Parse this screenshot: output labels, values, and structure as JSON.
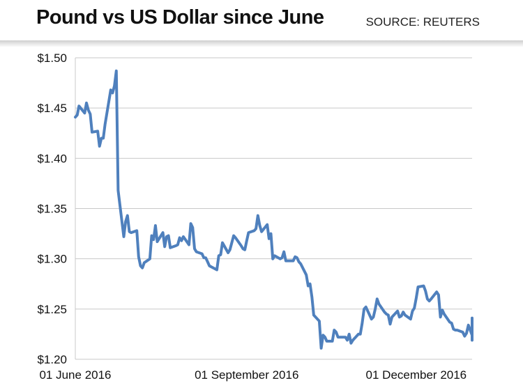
{
  "header": {
    "title": "Pound vs US Dollar since June",
    "source": "SOURCE: REUTERS"
  },
  "colors": {
    "line": "#4f80bd",
    "grid": "#c8c8c8",
    "header_shadow": "#cfcfcf"
  },
  "chart_data": {
    "type": "line",
    "title": "Pound vs US Dollar since June",
    "xlabel": "",
    "ylabel": "",
    "ylim": [
      1.2,
      1.5
    ],
    "xlim": [
      "2016-06-01",
      "2016-12-31"
    ],
    "yticks": [
      1.5,
      1.45,
      1.4,
      1.35,
      1.3,
      1.25,
      1.2
    ],
    "ytick_labels": [
      "$1.50",
      "$1.45",
      "$1.40",
      "$1.35",
      "$1.30",
      "$1.25",
      "$1.20"
    ],
    "xticks": [
      "2016-06-01",
      "2016-09-01",
      "2016-12-01"
    ],
    "xtick_labels": [
      "01 June 2016",
      "01 September 2016",
      "01 December 2016"
    ],
    "grid": true,
    "series": [
      {
        "color": "#4f80bd",
        "points": [
          [
            "2016-06-01",
            1.441
          ],
          [
            "2016-06-02",
            1.443
          ],
          [
            "2016-06-03",
            1.452
          ],
          [
            "2016-06-06",
            1.445
          ],
          [
            "2016-06-07",
            1.455
          ],
          [
            "2016-06-08",
            1.448
          ],
          [
            "2016-06-09",
            1.444
          ],
          [
            "2016-06-10",
            1.426
          ],
          [
            "2016-06-13",
            1.427
          ],
          [
            "2016-06-14",
            1.412
          ],
          [
            "2016-06-15",
            1.42
          ],
          [
            "2016-06-16",
            1.42
          ],
          [
            "2016-06-17",
            1.434
          ],
          [
            "2016-06-20",
            1.468
          ],
          [
            "2016-06-21",
            1.465
          ],
          [
            "2016-06-22",
            1.472
          ],
          [
            "2016-06-23",
            1.487
          ],
          [
            "2016-06-24",
            1.368
          ],
          [
            "2016-06-27",
            1.322
          ],
          [
            "2016-06-28",
            1.337
          ],
          [
            "2016-06-29",
            1.343
          ],
          [
            "2016-06-30",
            1.327
          ],
          [
            "2016-07-01",
            1.326
          ],
          [
            "2016-07-04",
            1.328
          ],
          [
            "2016-07-05",
            1.302
          ],
          [
            "2016-07-06",
            1.293
          ],
          [
            "2016-07-07",
            1.291
          ],
          [
            "2016-07-08",
            1.296
          ],
          [
            "2016-07-11",
            1.3
          ],
          [
            "2016-07-12",
            1.323
          ],
          [
            "2016-07-13",
            1.319
          ],
          [
            "2016-07-14",
            1.333
          ],
          [
            "2016-07-15",
            1.317
          ],
          [
            "2016-07-18",
            1.326
          ],
          [
            "2016-07-19",
            1.312
          ],
          [
            "2016-07-20",
            1.322
          ],
          [
            "2016-07-21",
            1.323
          ],
          [
            "2016-07-22",
            1.311
          ],
          [
            "2016-07-25",
            1.313
          ],
          [
            "2016-07-26",
            1.314
          ],
          [
            "2016-07-27",
            1.321
          ],
          [
            "2016-07-28",
            1.318
          ],
          [
            "2016-07-29",
            1.322
          ],
          [
            "2016-08-01",
            1.314
          ],
          [
            "2016-08-02",
            1.335
          ],
          [
            "2016-08-03",
            1.331
          ],
          [
            "2016-08-04",
            1.31
          ],
          [
            "2016-08-05",
            1.307
          ],
          [
            "2016-08-08",
            1.305
          ],
          [
            "2016-08-09",
            1.301
          ],
          [
            "2016-08-10",
            1.301
          ],
          [
            "2016-08-11",
            1.297
          ],
          [
            "2016-08-12",
            1.293
          ],
          [
            "2016-08-15",
            1.29
          ],
          [
            "2016-08-16",
            1.289
          ],
          [
            "2016-08-17",
            1.303
          ],
          [
            "2016-08-18",
            1.304
          ],
          [
            "2016-08-19",
            1.316
          ],
          [
            "2016-08-22",
            1.306
          ],
          [
            "2016-08-23",
            1.309
          ],
          [
            "2016-08-24",
            1.316
          ],
          [
            "2016-08-25",
            1.323
          ],
          [
            "2016-08-26",
            1.321
          ],
          [
            "2016-08-29",
            1.313
          ],
          [
            "2016-08-30",
            1.31
          ],
          [
            "2016-08-31",
            1.309
          ],
          [
            "2016-09-01",
            1.318
          ],
          [
            "2016-09-02",
            1.326
          ],
          [
            "2016-09-05",
            1.328
          ],
          [
            "2016-09-06",
            1.33
          ],
          [
            "2016-09-07",
            1.343
          ],
          [
            "2016-09-08",
            1.333
          ],
          [
            "2016-09-09",
            1.327
          ],
          [
            "2016-09-12",
            1.334
          ],
          [
            "2016-09-13",
            1.32
          ],
          [
            "2016-09-14",
            1.325
          ],
          [
            "2016-09-15",
            1.3
          ],
          [
            "2016-09-16",
            1.303
          ],
          [
            "2016-09-19",
            1.3
          ],
          [
            "2016-09-20",
            1.301
          ],
          [
            "2016-09-21",
            1.307
          ],
          [
            "2016-09-22",
            1.298
          ],
          [
            "2016-09-23",
            1.298
          ],
          [
            "2016-09-26",
            1.298
          ],
          [
            "2016-09-27",
            1.302
          ],
          [
            "2016-09-28",
            1.301
          ],
          [
            "2016-09-29",
            1.297
          ],
          [
            "2016-09-30",
            1.295
          ],
          [
            "2016-10-03",
            1.284
          ],
          [
            "2016-10-04",
            1.273
          ],
          [
            "2016-10-05",
            1.275
          ],
          [
            "2016-10-06",
            1.262
          ],
          [
            "2016-10-07",
            1.244
          ],
          [
            "2016-10-10",
            1.238
          ],
          [
            "2016-10-11",
            1.211
          ],
          [
            "2016-10-12",
            1.224
          ],
          [
            "2016-10-13",
            1.222
          ],
          [
            "2016-10-14",
            1.218
          ],
          [
            "2016-10-17",
            1.218
          ],
          [
            "2016-10-18",
            1.229
          ],
          [
            "2016-10-19",
            1.227
          ],
          [
            "2016-10-20",
            1.222
          ],
          [
            "2016-10-21",
            1.222
          ],
          [
            "2016-10-24",
            1.222
          ],
          [
            "2016-10-25",
            1.219
          ],
          [
            "2016-10-26",
            1.225
          ],
          [
            "2016-10-27",
            1.216
          ],
          [
            "2016-10-28",
            1.219
          ],
          [
            "2016-10-31",
            1.225
          ],
          [
            "2016-11-01",
            1.225
          ],
          [
            "2016-11-02",
            1.236
          ],
          [
            "2016-11-03",
            1.25
          ],
          [
            "2016-11-04",
            1.252
          ],
          [
            "2016-11-07",
            1.24
          ],
          [
            "2016-11-08",
            1.242
          ],
          [
            "2016-11-09",
            1.25
          ],
          [
            "2016-11-10",
            1.26
          ],
          [
            "2016-11-11",
            1.255
          ],
          [
            "2016-11-14",
            1.247
          ],
          [
            "2016-11-15",
            1.245
          ],
          [
            "2016-11-16",
            1.244
          ],
          [
            "2016-11-17",
            1.235
          ],
          [
            "2016-11-18",
            1.242
          ],
          [
            "2016-11-21",
            1.248
          ],
          [
            "2016-11-22",
            1.242
          ],
          [
            "2016-11-23",
            1.243
          ],
          [
            "2016-11-24",
            1.247
          ],
          [
            "2016-11-25",
            1.244
          ],
          [
            "2016-11-28",
            1.24
          ],
          [
            "2016-11-29",
            1.248
          ],
          [
            "2016-11-30",
            1.251
          ],
          [
            "2016-12-01",
            1.261
          ],
          [
            "2016-12-02",
            1.272
          ],
          [
            "2016-12-05",
            1.273
          ],
          [
            "2016-12-06",
            1.268
          ],
          [
            "2016-12-07",
            1.26
          ],
          [
            "2016-12-08",
            1.258
          ],
          [
            "2016-12-09",
            1.26
          ],
          [
            "2016-12-12",
            1.267
          ],
          [
            "2016-12-13",
            1.264
          ],
          [
            "2016-12-14",
            1.242
          ],
          [
            "2016-12-15",
            1.249
          ],
          [
            "2016-12-16",
            1.245
          ],
          [
            "2016-12-19",
            1.237
          ],
          [
            "2016-12-20",
            1.236
          ],
          [
            "2016-12-21",
            1.23
          ],
          [
            "2016-12-22",
            1.229
          ],
          [
            "2016-12-23",
            1.229
          ],
          [
            "2016-12-26",
            1.227
          ],
          [
            "2016-12-27",
            1.223
          ],
          [
            "2016-12-28",
            1.226
          ],
          [
            "2016-12-29",
            1.234
          ],
          [
            "2016-12-30",
            1.229
          ],
          [
            "2017-01-02",
            1.224
          ],
          [
            "2017-01-03",
            1.232
          ],
          [
            "2017-01-04",
            1.241
          ],
          [
            "2017-01-05",
            1.228
          ],
          [
            "2017-01-06",
            1.224
          ],
          [
            "2017-01-09",
            1.219
          ]
        ]
      }
    ]
  }
}
